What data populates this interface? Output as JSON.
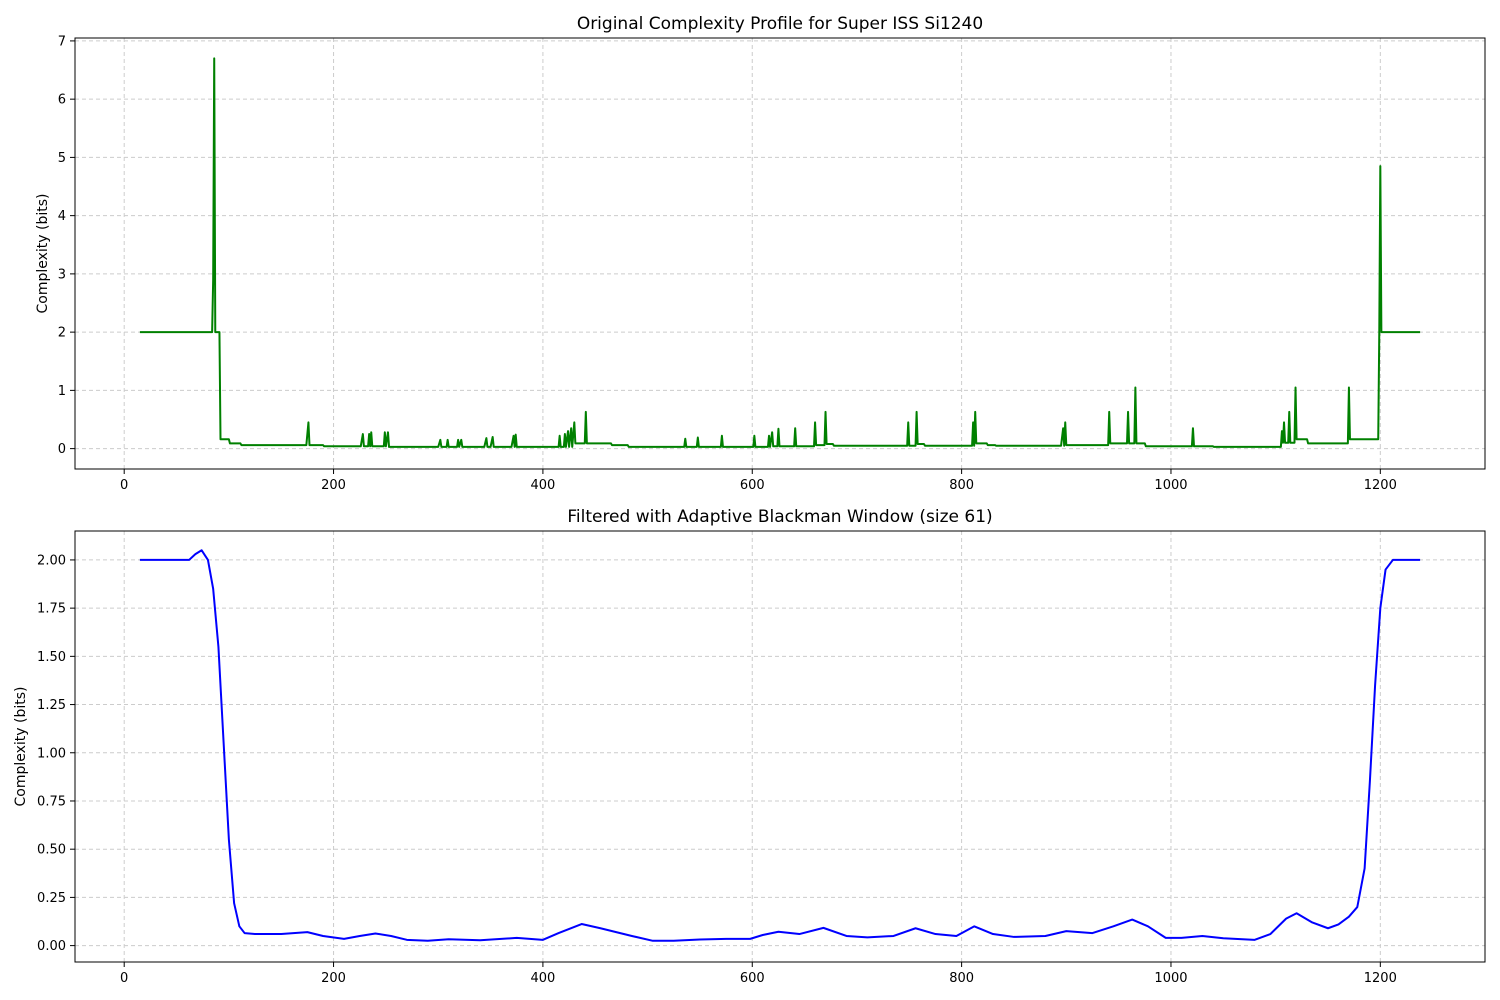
{
  "chart_data": [
    {
      "type": "line",
      "title": "Original Complexity Profile for Super ISS Si1240",
      "xlabel": "",
      "ylabel": "Complexity (bits)",
      "xlim": [
        -47,
        1300
      ],
      "ylim": [
        -0.35,
        7.05
      ],
      "xticks": [
        0,
        200,
        400,
        600,
        800,
        1000,
        1200
      ],
      "xtick_labels": [
        "0",
        "200",
        "400",
        "600",
        "800",
        "1000",
        "1200"
      ],
      "yticks": [
        0,
        1,
        2,
        3,
        4,
        5,
        6,
        7
      ],
      "ytick_labels": [
        "0",
        "1",
        "2",
        "3",
        "4",
        "5",
        "6",
        "7"
      ],
      "grid": true,
      "series": [
        {
          "color": "#008000",
          "points": [
            [
              15,
              2.0
            ],
            [
              84,
              2.0
            ],
            [
              85,
              2.9
            ],
            [
              86,
              6.7
            ],
            [
              87,
              2.0
            ],
            [
              88,
              2.0
            ],
            [
              91,
              2.0
            ],
            [
              92,
              0.16
            ],
            [
              100,
              0.16
            ],
            [
              101,
              0.09
            ],
            [
              111,
              0.09
            ],
            [
              112,
              0.06
            ],
            [
              174,
              0.06
            ],
            [
              176,
              0.45
            ],
            [
              177,
              0.06
            ],
            [
              190,
              0.06
            ],
            [
              191,
              0.04
            ],
            [
              226,
              0.04
            ],
            [
              228,
              0.25
            ],
            [
              229,
              0.04
            ],
            [
              233,
              0.04
            ],
            [
              234,
              0.25
            ],
            [
              235,
              0.04
            ],
            [
              236,
              0.28
            ],
            [
              237,
              0.04
            ],
            [
              248,
              0.04
            ],
            [
              249,
              0.28
            ],
            [
              250,
              0.04
            ],
            [
              252,
              0.28
            ],
            [
              253,
              0.03
            ],
            [
              300,
              0.03
            ],
            [
              302,
              0.15
            ],
            [
              303,
              0.03
            ],
            [
              308,
              0.03
            ],
            [
              309,
              0.15
            ],
            [
              310,
              0.03
            ],
            [
              318,
              0.03
            ],
            [
              319,
              0.15
            ],
            [
              320,
              0.03
            ],
            [
              322,
              0.15
            ],
            [
              323,
              0.03
            ],
            [
              344,
              0.03
            ],
            [
              346,
              0.18
            ],
            [
              347,
              0.03
            ],
            [
              350,
              0.03
            ],
            [
              352,
              0.2
            ],
            [
              353,
              0.03
            ],
            [
              370,
              0.03
            ],
            [
              372,
              0.22
            ],
            [
              373,
              0.03
            ],
            [
              374,
              0.24
            ],
            [
              375,
              0.03
            ],
            [
              415,
              0.03
            ],
            [
              416,
              0.22
            ],
            [
              417,
              0.03
            ],
            [
              420,
              0.03
            ],
            [
              421,
              0.25
            ],
            [
              422,
              0.03
            ],
            [
              424,
              0.3
            ],
            [
              425,
              0.03
            ],
            [
              427,
              0.35
            ],
            [
              428,
              0.03
            ],
            [
              430,
              0.45
            ],
            [
              431,
              0.09
            ],
            [
              440,
              0.09
            ],
            [
              441,
              0.63
            ],
            [
              442,
              0.09
            ],
            [
              465,
              0.09
            ],
            [
              466,
              0.06
            ],
            [
              481,
              0.06
            ],
            [
              482,
              0.03
            ],
            [
              535,
              0.03
            ],
            [
              536,
              0.17
            ],
            [
              537,
              0.03
            ],
            [
              547,
              0.03
            ],
            [
              548,
              0.19
            ],
            [
              549,
              0.03
            ],
            [
              570,
              0.03
            ],
            [
              571,
              0.22
            ],
            [
              572,
              0.03
            ],
            [
              601,
              0.03
            ],
            [
              602,
              0.22
            ],
            [
              603,
              0.03
            ],
            [
              615,
              0.03
            ],
            [
              616,
              0.22
            ],
            [
              617,
              0.03
            ],
            [
              619,
              0.28
            ],
            [
              620,
              0.04
            ],
            [
              624,
              0.04
            ],
            [
              625,
              0.34
            ],
            [
              626,
              0.04
            ],
            [
              640,
              0.04
            ],
            [
              641,
              0.35
            ],
            [
              642,
              0.04
            ],
            [
              659,
              0.04
            ],
            [
              660,
              0.45
            ],
            [
              661,
              0.06
            ],
            [
              669,
              0.06
            ],
            [
              670,
              0.63
            ],
            [
              671,
              0.08
            ],
            [
              677,
              0.08
            ],
            [
              678,
              0.05
            ],
            [
              748,
              0.05
            ],
            [
              749,
              0.45
            ],
            [
              750,
              0.05
            ],
            [
              756,
              0.05
            ],
            [
              757,
              0.63
            ],
            [
              758,
              0.08
            ],
            [
              764,
              0.08
            ],
            [
              765,
              0.05
            ],
            [
              810,
              0.05
            ],
            [
              811,
              0.45
            ],
            [
              812,
              0.05
            ],
            [
              813,
              0.63
            ],
            [
              814,
              0.09
            ],
            [
              824,
              0.09
            ],
            [
              825,
              0.06
            ],
            [
              832,
              0.06
            ],
            [
              833,
              0.05
            ],
            [
              895,
              0.05
            ],
            [
              897,
              0.35
            ],
            [
              898,
              0.05
            ],
            [
              899,
              0.45
            ],
            [
              900,
              0.06
            ],
            [
              940,
              0.06
            ],
            [
              941,
              0.63
            ],
            [
              942,
              0.09
            ],
            [
              958,
              0.09
            ],
            [
              959,
              0.63
            ],
            [
              960,
              0.09
            ],
            [
              965,
              0.09
            ],
            [
              966,
              1.05
            ],
            [
              967,
              0.09
            ],
            [
              975,
              0.09
            ],
            [
              976,
              0.04
            ],
            [
              1020,
              0.04
            ],
            [
              1021,
              0.35
            ],
            [
              1022,
              0.04
            ],
            [
              1040,
              0.04
            ],
            [
              1041,
              0.03
            ],
            [
              1105,
              0.03
            ],
            [
              1106,
              0.3
            ],
            [
              1107,
              0.1
            ],
            [
              1108,
              0.45
            ],
            [
              1109,
              0.1
            ],
            [
              1112,
              0.1
            ],
            [
              1113,
              0.63
            ],
            [
              1114,
              0.1
            ],
            [
              1118,
              0.1
            ],
            [
              1119,
              1.05
            ],
            [
              1120,
              0.16
            ],
            [
              1130,
              0.16
            ],
            [
              1131,
              0.09
            ],
            [
              1169,
              0.09
            ],
            [
              1170,
              1.05
            ],
            [
              1171,
              0.16
            ],
            [
              1198,
              0.16
            ],
            [
              1199,
              2.0
            ],
            [
              1200,
              4.85
            ],
            [
              1201,
              2.0
            ],
            [
              1238,
              2.0
            ]
          ]
        }
      ]
    },
    {
      "type": "line",
      "title": "Filtered with Adaptive Blackman Window (size 61)",
      "xlabel": "",
      "ylabel": "Complexity (bits)",
      "xlim": [
        -47,
        1300
      ],
      "ylim": [
        -0.085,
        2.15
      ],
      "xticks": [
        0,
        200,
        400,
        600,
        800,
        1000,
        1200
      ],
      "xtick_labels": [
        "0",
        "200",
        "400",
        "600",
        "800",
        "1000",
        "1200"
      ],
      "yticks": [
        0,
        0.25,
        0.5,
        0.75,
        1.0,
        1.25,
        1.5,
        1.75,
        2.0
      ],
      "ytick_labels": [
        "0.00",
        "0.25",
        "0.50",
        "0.75",
        "1.00",
        "1.25",
        "1.50",
        "1.75",
        "2.00"
      ],
      "grid": true,
      "series": [
        {
          "color": "#0000ff",
          "points": [
            [
              15,
              2.0
            ],
            [
              55,
              2.0
            ],
            [
              62,
              2.0
            ],
            [
              68,
              2.03
            ],
            [
              74,
              2.05
            ],
            [
              80,
              2.0
            ],
            [
              85,
              1.85
            ],
            [
              90,
              1.55
            ],
            [
              95,
              1.05
            ],
            [
              100,
              0.55
            ],
            [
              105,
              0.22
            ],
            [
              110,
              0.1
            ],
            [
              115,
              0.065
            ],
            [
              125,
              0.06
            ],
            [
              150,
              0.06
            ],
            [
              175,
              0.07
            ],
            [
              190,
              0.05
            ],
            [
              210,
              0.035
            ],
            [
              225,
              0.05
            ],
            [
              240,
              0.063
            ],
            [
              255,
              0.05
            ],
            [
              270,
              0.03
            ],
            [
              290,
              0.025
            ],
            [
              310,
              0.033
            ],
            [
              340,
              0.028
            ],
            [
              375,
              0.04
            ],
            [
              400,
              0.03
            ],
            [
              415,
              0.065
            ],
            [
              437,
              0.112
            ],
            [
              455,
              0.09
            ],
            [
              485,
              0.05
            ],
            [
              505,
              0.025
            ],
            [
              525,
              0.025
            ],
            [
              550,
              0.032
            ],
            [
              575,
              0.035
            ],
            [
              598,
              0.035
            ],
            [
              610,
              0.055
            ],
            [
              625,
              0.072
            ],
            [
              645,
              0.06
            ],
            [
              668,
              0.092
            ],
            [
              690,
              0.05
            ],
            [
              710,
              0.043
            ],
            [
              735,
              0.05
            ],
            [
              756,
              0.09
            ],
            [
              775,
              0.06
            ],
            [
              795,
              0.05
            ],
            [
              812,
              0.1
            ],
            [
              830,
              0.06
            ],
            [
              850,
              0.045
            ],
            [
              880,
              0.05
            ],
            [
              900,
              0.075
            ],
            [
              925,
              0.065
            ],
            [
              945,
              0.1
            ],
            [
              963,
              0.135
            ],
            [
              978,
              0.1
            ],
            [
              995,
              0.04
            ],
            [
              1010,
              0.04
            ],
            [
              1030,
              0.05
            ],
            [
              1050,
              0.038
            ],
            [
              1080,
              0.03
            ],
            [
              1095,
              0.06
            ],
            [
              1110,
              0.14
            ],
            [
              1120,
              0.168
            ],
            [
              1135,
              0.12
            ],
            [
              1150,
              0.09
            ],
            [
              1160,
              0.11
            ],
            [
              1170,
              0.15
            ],
            [
              1178,
              0.2
            ],
            [
              1185,
              0.4
            ],
            [
              1190,
              0.85
            ],
            [
              1195,
              1.35
            ],
            [
              1200,
              1.75
            ],
            [
              1205,
              1.95
            ],
            [
              1212,
              2.0
            ],
            [
              1238,
              2.0
            ]
          ]
        }
      ]
    }
  ]
}
